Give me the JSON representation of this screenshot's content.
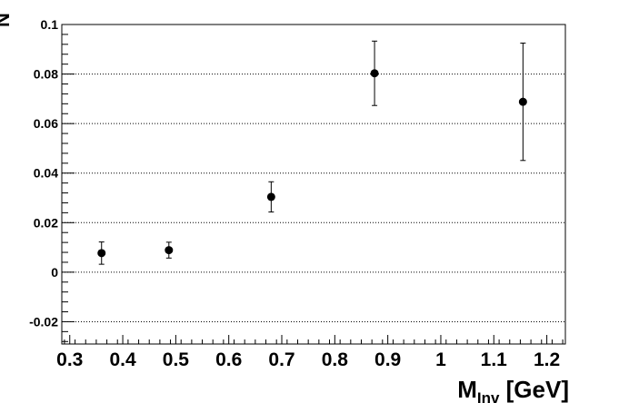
{
  "chart_data": {
    "type": "scatter",
    "title": "",
    "xlabel": {
      "main": "M",
      "sub": "Inv",
      "rest": " [GeV]"
    },
    "ylabel": "N",
    "xlim": [
      0.285,
      1.235
    ],
    "ylim": [
      -0.029,
      0.1
    ],
    "grid": "horizontal dotted",
    "x_ticks": [
      "0.3",
      "0.4",
      "0.5",
      "0.6",
      "0.7",
      "0.8",
      "0.9",
      "1",
      "1.1",
      "1.2"
    ],
    "y_ticks": [
      "-0.02",
      "0",
      "0.02",
      "0.04",
      "0.06",
      "0.08",
      "0.1"
    ],
    "points": [
      {
        "x": 0.36,
        "y": 0.0077,
        "err_low": 0.0045,
        "err_high": 0.0045
      },
      {
        "x": 0.487,
        "y": 0.0089,
        "err_low": 0.0032,
        "err_high": 0.0032
      },
      {
        "x": 0.68,
        "y": 0.0304,
        "err_low": 0.0061,
        "err_high": 0.0061
      },
      {
        "x": 0.875,
        "y": 0.0803,
        "err_low": 0.013,
        "err_high": 0.013
      },
      {
        "x": 1.155,
        "y": 0.0688,
        "err_low": 0.0237,
        "err_high": 0.0237
      }
    ]
  }
}
